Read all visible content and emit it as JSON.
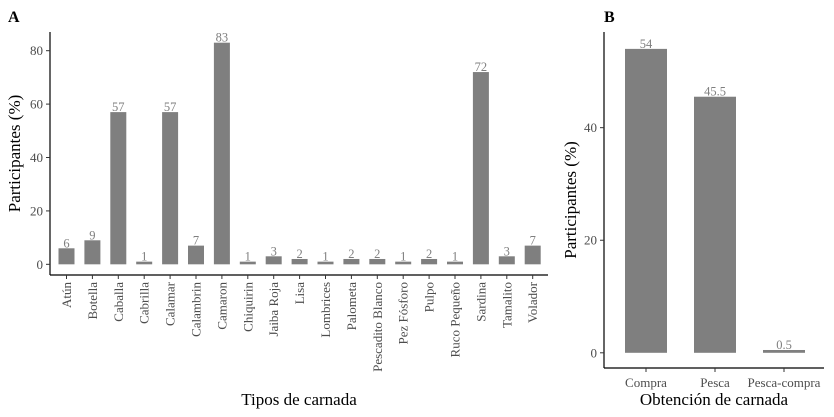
{
  "chart_data": [
    {
      "panel": "A",
      "type": "bar",
      "xlabel": "Tipos de carnada",
      "ylabel": "Participantes (%)",
      "categories": [
        "Atún",
        "Botella",
        "Caballa",
        "Cabrilla",
        "Calamar",
        "Calambrin",
        "Camaron",
        "Chiquirin",
        "Jaiba Roja",
        "Lisa",
        "Lombrices",
        "Palometa",
        "Pescadito Blanco",
        "Pez Fósforo",
        "Pulpo",
        "Ruco Pequeño",
        "Sardina",
        "Tamalito",
        "Volador"
      ],
      "values": [
        6,
        9,
        57,
        1,
        57,
        7,
        83,
        1,
        3,
        2,
        1,
        2,
        2,
        1,
        2,
        1,
        72,
        3,
        7
      ],
      "yticks": [
        0,
        20,
        40,
        60,
        80
      ],
      "ylim": [
        -4,
        87
      ],
      "bar_color": "#7f7f7f",
      "grid": false
    },
    {
      "panel": "B",
      "type": "bar",
      "xlabel": "Obtención de carnada",
      "ylabel": "Participantes (%)",
      "categories": [
        "Compra",
        "Pesca",
        "Pesca-compra"
      ],
      "values": [
        54,
        45.5,
        0.5
      ],
      "yticks": [
        0,
        20,
        40
      ],
      "ylim": [
        -2.7,
        57
      ],
      "bar_color": "#7f7f7f",
      "grid": false
    }
  ]
}
